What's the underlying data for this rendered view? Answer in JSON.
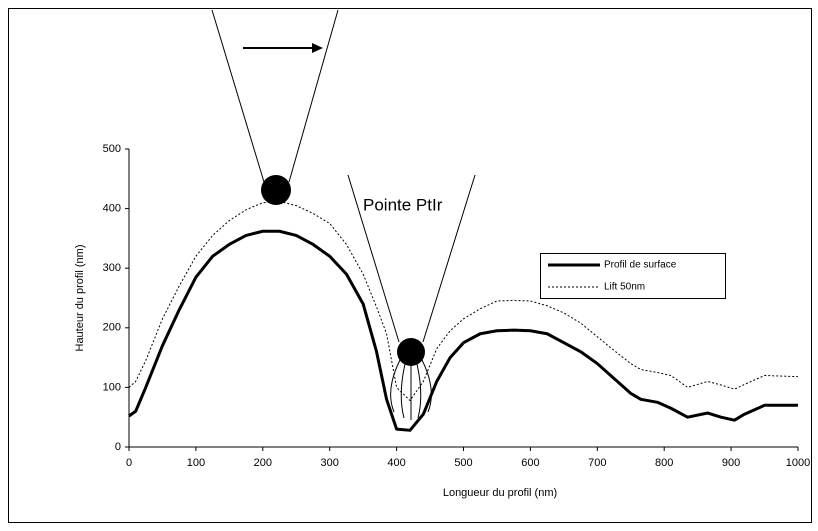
{
  "chart_data": {
    "type": "line",
    "xlabel": "Longueur du profil (nm)",
    "ylabel": "Hauteur du profil (nm)",
    "annotations": [
      "Pointe PtIr"
    ],
    "xlim": [
      0,
      1000
    ],
    "ylim": [
      0,
      500
    ],
    "xticks": [
      0,
      100,
      200,
      300,
      400,
      500,
      600,
      700,
      800,
      900,
      1000
    ],
    "yticks": [
      0,
      100,
      200,
      300,
      400,
      500
    ],
    "x": [
      0,
      10,
      25,
      50,
      75,
      100,
      125,
      150,
      175,
      200,
      225,
      250,
      275,
      300,
      325,
      350,
      370,
      385,
      400,
      420,
      440,
      460,
      480,
      500,
      525,
      550,
      575,
      600,
      625,
      650,
      675,
      700,
      725,
      750,
      765,
      790,
      810,
      835,
      865,
      885,
      905,
      920,
      950,
      1000
    ],
    "series": [
      {
        "name": "Profil de surface",
        "color": "#000000",
        "style": "solid",
        "values": [
          52,
          60,
          100,
          170,
          230,
          285,
          320,
          340,
          355,
          362,
          362,
          355,
          340,
          320,
          290,
          240,
          160,
          80,
          30,
          28,
          55,
          110,
          150,
          175,
          190,
          195,
          196,
          195,
          190,
          175,
          160,
          140,
          115,
          90,
          80,
          75,
          65,
          50,
          57,
          50,
          45,
          55,
          70,
          70
        ]
      },
      {
        "name": "Lift 50nm",
        "color": "#000000",
        "style": "dotted",
        "values": [
          100,
          110,
          145,
          215,
          270,
          320,
          355,
          380,
          398,
          410,
          412,
          405,
          392,
          375,
          340,
          290,
          235,
          190,
          100,
          78,
          110,
          165,
          195,
          215,
          232,
          245,
          246,
          245,
          237,
          225,
          208,
          185,
          162,
          140,
          130,
          125,
          120,
          100,
          110,
          104,
          97,
          105,
          120,
          118
        ]
      }
    ]
  }
}
